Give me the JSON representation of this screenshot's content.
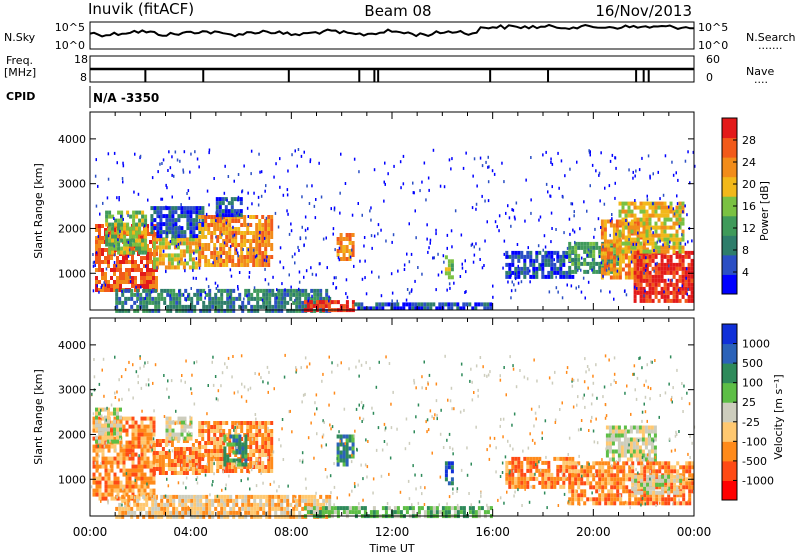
{
  "header": {
    "station": "Inuvik (fitACF)",
    "beam": "Beam 08",
    "date": "16/Nov/2013"
  },
  "sky_panel": {
    "left_label": "N.Sky",
    "right_label": "N.Search",
    "right_dots": "·······",
    "left_ticks": [
      "10^5",
      "10^0"
    ],
    "right_ticks": [
      "10^5",
      "10^0"
    ]
  },
  "freq_panel": {
    "label_line1": "Freq.",
    "label_line2": "[MHz]",
    "left_ticks": [
      "18",
      "8"
    ],
    "right_ticks": [
      "60",
      "0"
    ],
    "right_label": "Nave",
    "right_dots": "····"
  },
  "cpid": {
    "label": "CPID",
    "value": "N/A -3350"
  },
  "x_axis": {
    "ticks": [
      "00:00",
      "04:00",
      "08:00",
      "12:00",
      "16:00",
      "20:00",
      "00:00"
    ],
    "label": "Time UT"
  },
  "chart_data": [
    {
      "type": "heatmap",
      "name": "power",
      "ylabel": "Slant Range [km]",
      "ylim": [
        180,
        4600
      ],
      "y_ticks": [
        "4000",
        "3000",
        "2000",
        "1000"
      ],
      "x_range_hours": [
        0,
        24
      ],
      "colorbar": {
        "label": "Power [dB]",
        "ticks": [
          "28",
          "24",
          "20",
          "16",
          "12",
          "8",
          "4"
        ],
        "colors": [
          "#0000ff",
          "#2b4fc4",
          "#2e7d6b",
          "#3f9a5a",
          "#7ac142",
          "#f2b81a",
          "#f28c1a",
          "#f25a1a",
          "#e31a1a"
        ]
      },
      "regions": [
        {
          "t0": 0.2,
          "t1": 2.6,
          "r0": 600,
          "r1": 2100,
          "level": 7
        },
        {
          "t0": 0.6,
          "t1": 2.2,
          "r0": 1500,
          "r1": 2400,
          "level": 4
        },
        {
          "t0": 2.5,
          "t1": 4.3,
          "r0": 1100,
          "r1": 1800,
          "level": 5
        },
        {
          "t0": 2.4,
          "t1": 4.5,
          "r0": 1800,
          "r1": 2500,
          "level": 1
        },
        {
          "t0": 4.3,
          "t1": 7.2,
          "r0": 1200,
          "r1": 2300,
          "level": 6
        },
        {
          "t0": 5.0,
          "t1": 6.0,
          "r0": 2300,
          "r1": 2700,
          "level": 1
        },
        {
          "t0": 9.8,
          "t1": 10.4,
          "r0": 1300,
          "r1": 1900,
          "level": 6
        },
        {
          "t0": 1.0,
          "t1": 9.5,
          "r0": 200,
          "r1": 650,
          "level": 2
        },
        {
          "t0": 8.5,
          "t1": 10.5,
          "r0": 200,
          "r1": 400,
          "level": 8
        },
        {
          "t0": 10.5,
          "t1": 15.9,
          "r0": 200,
          "r1": 350,
          "level": 1
        },
        {
          "t0": 14.1,
          "t1": 14.4,
          "r0": 900,
          "r1": 1400,
          "level": 4
        },
        {
          "t0": 16.5,
          "t1": 19.2,
          "r0": 950,
          "r1": 1500,
          "level": 1
        },
        {
          "t0": 19.0,
          "t1": 21.0,
          "r0": 1000,
          "r1": 1700,
          "level": 3
        },
        {
          "t0": 20.3,
          "t1": 22.2,
          "r0": 900,
          "r1": 2200,
          "level": 6
        },
        {
          "t0": 21.6,
          "t1": 23.9,
          "r0": 400,
          "r1": 1500,
          "level": 8
        },
        {
          "t0": 21.0,
          "t1": 23.6,
          "r0": 1500,
          "r1": 2600,
          "level": 5
        }
      ]
    },
    {
      "type": "heatmap",
      "name": "velocity",
      "ylabel": "Slant Range [km]",
      "ylim": [
        180,
        4600
      ],
      "y_ticks": [
        "4000",
        "3000",
        "2000",
        "1000"
      ],
      "x_range_hours": [
        0,
        24
      ],
      "colorbar": {
        "label": "Velocity [m s⁻¹]",
        "ticks": [
          "1000",
          "500",
          "100",
          "25",
          "-25",
          "-100",
          "-500",
          "-1000"
        ],
        "colors": [
          "#ff0000",
          "#ff4a14",
          "#ff8a1a",
          "#ffc870",
          "#cdcdbd",
          "#5dbe46",
          "#2e8a5a",
          "#2b62b8",
          "#1030d8"
        ]
      },
      "regions": [
        {
          "t0": 0.1,
          "t1": 2.6,
          "r0": 600,
          "r1": 2400,
          "level": 2
        },
        {
          "t0": 0.2,
          "t1": 1.2,
          "r0": 1800,
          "r1": 2600,
          "level": 4
        },
        {
          "t0": 2.5,
          "t1": 4.3,
          "r0": 1100,
          "r1": 1900,
          "level": 2
        },
        {
          "t0": 3.0,
          "t1": 4.0,
          "r0": 1900,
          "r1": 2400,
          "level": 4
        },
        {
          "t0": 4.3,
          "t1": 7.2,
          "r0": 1200,
          "r1": 2300,
          "level": 2
        },
        {
          "t0": 5.3,
          "t1": 6.2,
          "r0": 1300,
          "r1": 2000,
          "level": 6
        },
        {
          "t0": 9.8,
          "t1": 10.4,
          "r0": 1300,
          "r1": 2000,
          "level": 6
        },
        {
          "t0": 1.0,
          "t1": 9.5,
          "r0": 200,
          "r1": 650,
          "level": 3
        },
        {
          "t0": 8.5,
          "t1": 15.9,
          "r0": 200,
          "r1": 400,
          "level": 5
        },
        {
          "t0": 14.1,
          "t1": 14.4,
          "r0": 900,
          "r1": 1400,
          "level": 7
        },
        {
          "t0": 16.5,
          "t1": 19.2,
          "r0": 850,
          "r1": 1500,
          "level": 2
        },
        {
          "t0": 19.0,
          "t1": 23.9,
          "r0": 500,
          "r1": 1400,
          "level": 2
        },
        {
          "t0": 20.5,
          "t1": 22.5,
          "r0": 1400,
          "r1": 2200,
          "level": 4
        },
        {
          "t0": 21.5,
          "t1": 23.5,
          "r0": 700,
          "r1": 1100,
          "level": 4
        }
      ]
    }
  ]
}
